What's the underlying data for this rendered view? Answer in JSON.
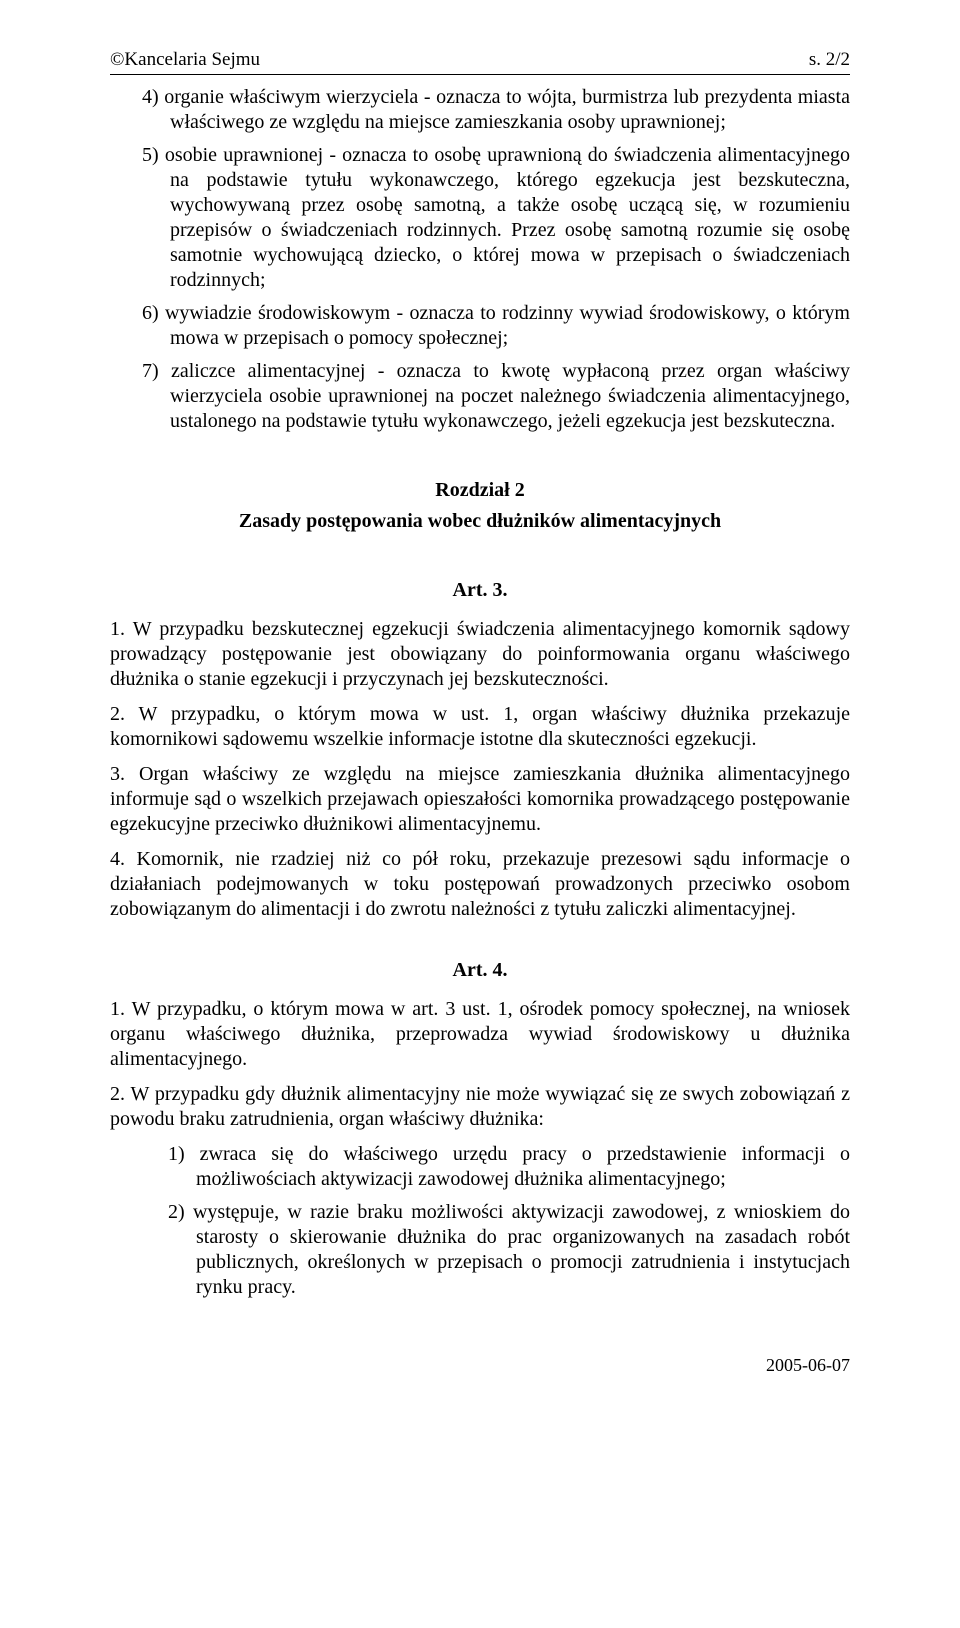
{
  "header": {
    "left": "©Kancelaria Sejmu",
    "right": "s. 2/2"
  },
  "defs": {
    "d4": "4) organie właściwym wierzyciela - oznacza to wójta, burmistrza lub prezydenta miasta właściwego ze względu na miejsce zamieszkania osoby uprawnionej;",
    "d5": "5) osobie uprawnionej - oznacza to osobę uprawnioną do świadczenia alimentacyjnego na podstawie tytułu wykonawczego, którego egzekucja jest bezskuteczna, wychowywaną przez osobę samotną, a także osobę uczącą się, w rozumieniu przepisów o świadczeniach rodzinnych. Przez osobę samotną rozumie się osobę samotnie wychowującą dziecko, o której mowa w przepisach o świadczeniach rodzinnych;",
    "d6": "6) wywiadzie środowiskowym - oznacza to rodzinny wywiad środowiskowy, o którym mowa w przepisach o pomocy społecznej;",
    "d7": "7) zaliczce alimentacyjnej - oznacza to kwotę wypłaconą przez organ właściwy wierzyciela osobie uprawnionej na poczet należnego świadczenia alimentacyjnego, ustalonego na podstawie tytułu wykonawczego, jeżeli egzekucja jest bezskuteczna."
  },
  "chapter2": {
    "title": "Rozdział 2",
    "subtitle": "Zasady postępowania wobec dłużników alimentacyjnych"
  },
  "art3": {
    "title": "Art. 3.",
    "p1": "1. W przypadku bezskutecznej egzekucji świadczenia alimentacyjnego komornik sądowy prowadzący postępowanie jest obowiązany do poinformowania organu właściwego dłużnika o stanie egzekucji i przyczynach jej bezskuteczności.",
    "p2": "2. W przypadku, o którym mowa w ust. 1, organ właściwy dłużnika przekazuje komornikowi sądowemu wszelkie informacje istotne dla skuteczności egzekucji.",
    "p3": "3. Organ właściwy ze względu na miejsce zamieszkania dłużnika alimentacyjnego informuje sąd o wszelkich przejawach opieszałości komornika prowadzącego postępowanie egzekucyjne przeciwko dłużnikowi alimentacyjnemu.",
    "p4": "4. Komornik, nie rzadziej niż co pół roku, przekazuje prezesowi sądu informacje o działaniach podejmowanych w toku postępowań prowadzonych przeciwko osobom zobowiązanym do alimentacji i do zwrotu należności z tytułu zaliczki alimentacyjnej."
  },
  "art4": {
    "title": "Art. 4.",
    "p1": "1. W przypadku, o którym mowa w art. 3 ust. 1, ośrodek pomocy społecznej, na wniosek organu właściwego dłużnika, przeprowadza wywiad środowiskowy u dłużnika alimentacyjnego.",
    "p2": "2. W przypadku gdy dłużnik alimentacyjny nie może wywiązać się ze swych zobowiązań z powodu braku zatrudnienia, organ właściwy dłużnika:",
    "p2_1": "1) zwraca się do właściwego urzędu pracy o przedstawienie informacji o możliwościach aktywizacji zawodowej dłużnika alimentacyjnego;",
    "p2_2": "2) występuje, w razie braku możliwości aktywizacji zawodowej, z wnioskiem do starosty o skierowanie dłużnika do prac organizowanych na zasadach robót publicznych, określonych w przepisach o promocji zatrudnienia i instytucjach rynku pracy."
  },
  "footer": {
    "date": "2005-06-07"
  }
}
